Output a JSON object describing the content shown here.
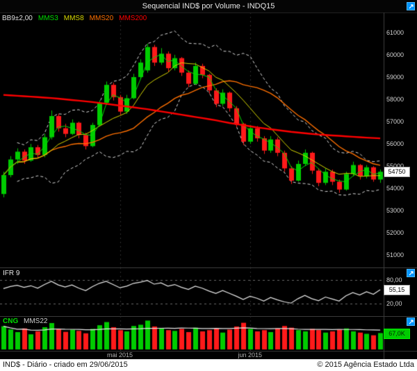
{
  "title_bar": {
    "title": "Sequencial IND$ por Volume - INDQ15"
  },
  "colors": {
    "background": "#000000",
    "up_candle": "#00cc00",
    "down_candle": "#ff1a1a",
    "bollinger": "#dcdcdc",
    "mms3": "#00dd00",
    "mms8": "#d8d800",
    "mms20": "#ff7000",
    "mms200": "#ff0000",
    "panel_icon": "#0094ff",
    "indicator_line": "#e8e8e8",
    "last_price_box_bg": "#ffffff",
    "volume_box_bg": "#00cc00"
  },
  "main_chart": {
    "legend": [
      {
        "label": "BB9±2,00",
        "color": "#e0e0e0"
      },
      {
        "label": "MMS3",
        "color": "#00dd00"
      },
      {
        "label": "MMS8",
        "color": "#d8d800"
      },
      {
        "label": "MMS20",
        "color": "#ff7000"
      },
      {
        "label": "MMS200",
        "color": "#ff0000"
      }
    ],
    "last_price_label": "54750"
  },
  "ifr_panel": {
    "label": "IFR 9",
    "y_tick_labels": [
      "80,00",
      "20,00"
    ],
    "last_value_label": "55,15"
  },
  "volume_panel": {
    "label_cng": "CNG",
    "label_mms": "MMS22",
    "last_value_label": "67,0K"
  },
  "status_bar": {
    "left": "IND$ - Diário - criado em 29/06/2015",
    "right": "© 2015 Agência Estado Ltda"
  },
  "chart_data": {
    "type": "candlestick",
    "title": "Sequencial IND$ por Volume - INDQ15",
    "timeframe": "Diário",
    "y_range": [
      50450,
      61900
    ],
    "y_ticks": [
      61000,
      60000,
      59000,
      58000,
      57000,
      56000,
      55000,
      54000,
      53000,
      52000,
      51000
    ],
    "month_ticks": [
      {
        "index": 17,
        "label": "mai 2015"
      },
      {
        "index": 36,
        "label": "jun 2015"
      }
    ],
    "indicators": {
      "bollinger_period": 9,
      "bollinger_mult": 2,
      "mms_periods": [
        3,
        8,
        20,
        200
      ]
    },
    "candles_ohlc": [
      [
        53750,
        54750,
        53600,
        54600
      ],
      [
        54600,
        55450,
        54500,
        55300
      ],
      [
        55300,
        55800,
        55100,
        55650
      ],
      [
        55650,
        55750,
        55100,
        55250
      ],
      [
        55250,
        56000,
        55200,
        55850
      ],
      [
        55850,
        55950,
        55350,
        55500
      ],
      [
        55500,
        56450,
        55400,
        56300
      ],
      [
        56300,
        57500,
        56200,
        57250
      ],
      [
        57250,
        57350,
        56550,
        56700
      ],
      [
        56700,
        56900,
        56300,
        56450
      ],
      [
        56450,
        57100,
        56400,
        56950
      ],
      [
        56950,
        57000,
        56250,
        56400
      ],
      [
        56400,
        56500,
        55750,
        55900
      ],
      [
        55900,
        56950,
        55850,
        56850
      ],
      [
        56850,
        57950,
        56800,
        57850
      ],
      [
        57850,
        58800,
        57750,
        58650
      ],
      [
        58650,
        58750,
        57950,
        58100
      ],
      [
        58100,
        58200,
        57300,
        57450
      ],
      [
        57450,
        58200,
        57350,
        58050
      ],
      [
        58050,
        59150,
        58000,
        59000
      ],
      [
        59000,
        59800,
        58900,
        59650
      ],
      [
        59300,
        60500,
        59200,
        60350
      ],
      [
        60350,
        60450,
        59500,
        59650
      ],
      [
        59650,
        60300,
        59550,
        60050
      ],
      [
        60050,
        60150,
        59250,
        59400
      ],
      [
        59400,
        60000,
        59300,
        59850
      ],
      [
        59850,
        59900,
        59050,
        59200
      ],
      [
        59200,
        59300,
        58550,
        58700
      ],
      [
        58700,
        59650,
        58650,
        59500
      ],
      [
        59500,
        59600,
        58950,
        59100
      ],
      [
        59100,
        59150,
        58250,
        58400
      ],
      [
        58400,
        58500,
        57650,
        57800
      ],
      [
        57800,
        58450,
        57700,
        58300
      ],
      [
        58300,
        58350,
        57450,
        57600
      ],
      [
        57600,
        57700,
        56750,
        56900
      ],
      [
        56900,
        56950,
        55950,
        56100
      ],
      [
        56100,
        56850,
        56000,
        56700
      ],
      [
        56700,
        56800,
        56100,
        56250
      ],
      [
        56250,
        56350,
        55550,
        55700
      ],
      [
        55700,
        56350,
        55600,
        56200
      ],
      [
        56200,
        56300,
        55450,
        55600
      ],
      [
        55600,
        55700,
        54750,
        54900
      ],
      [
        54900,
        55000,
        54200,
        54350
      ],
      [
        54350,
        55250,
        54300,
        55100
      ],
      [
        55100,
        55750,
        55000,
        55600
      ],
      [
        55600,
        55650,
        54650,
        54800
      ],
      [
        54800,
        54900,
        54100,
        54250
      ],
      [
        54250,
        54900,
        54150,
        54750
      ],
      [
        54750,
        54850,
        54150,
        54300
      ],
      [
        54300,
        54400,
        53800,
        53950
      ],
      [
        53950,
        54750,
        53900,
        54650
      ],
      [
        54650,
        55200,
        54550,
        55050
      ],
      [
        55050,
        55100,
        54400,
        54550
      ],
      [
        54550,
        55050,
        54450,
        54950
      ],
      [
        54950,
        55000,
        54300,
        54400
      ],
      [
        54400,
        54850,
        54250,
        54750
      ]
    ],
    "mms200": [
      58200,
      58180,
      58160,
      58140,
      58120,
      58100,
      58080,
      58060,
      58030,
      58000,
      57970,
      57940,
      57910,
      57880,
      57840,
      57800,
      57760,
      57720,
      57680,
      57640,
      57600,
      57560,
      57510,
      57460,
      57410,
      57360,
      57310,
      57260,
      57210,
      57160,
      57110,
      57060,
      57000,
      56940,
      56890,
      56840,
      56790,
      56740,
      56700,
      56660,
      56620,
      56580,
      56540,
      56510,
      56480,
      56450,
      56420,
      56400,
      56380,
      56360,
      56340,
      56320,
      56300,
      56280,
      56265,
      56250
    ],
    "rsi": {
      "label": "IFR 9",
      "period": 9,
      "range": [
        0,
        100
      ],
      "gridlines": [
        80,
        20
      ],
      "values": [
        58,
        63,
        66,
        61,
        65,
        59,
        68,
        76,
        67,
        62,
        67,
        59,
        53,
        63,
        71,
        76,
        68,
        60,
        64,
        71,
        74,
        78,
        69,
        72,
        64,
        68,
        61,
        56,
        64,
        59,
        52,
        46,
        53,
        46,
        39,
        31,
        39,
        34,
        27,
        36,
        30,
        25,
        22,
        33,
        41,
        33,
        28,
        37,
        32,
        27,
        40,
        48,
        42,
        50,
        44,
        55.15
      ],
      "last": 55.15
    },
    "volume": {
      "ma_period": 22,
      "scale_max_k": 125,
      "values_k": [
        95,
        82,
        71,
        86,
        62,
        74,
        91,
        108,
        84,
        72,
        81,
        76,
        66,
        84,
        99,
        112,
        91,
        79,
        74,
        96,
        101,
        118,
        94,
        86,
        79,
        76,
        84,
        71,
        89,
        74,
        79,
        86,
        69,
        81,
        94,
        109,
        84,
        74,
        79,
        71,
        86,
        96,
        89,
        79,
        74,
        84,
        79,
        69,
        74,
        81,
        86,
        74,
        69,
        64,
        58,
        67
      ],
      "last_k": 67.0
    }
  }
}
